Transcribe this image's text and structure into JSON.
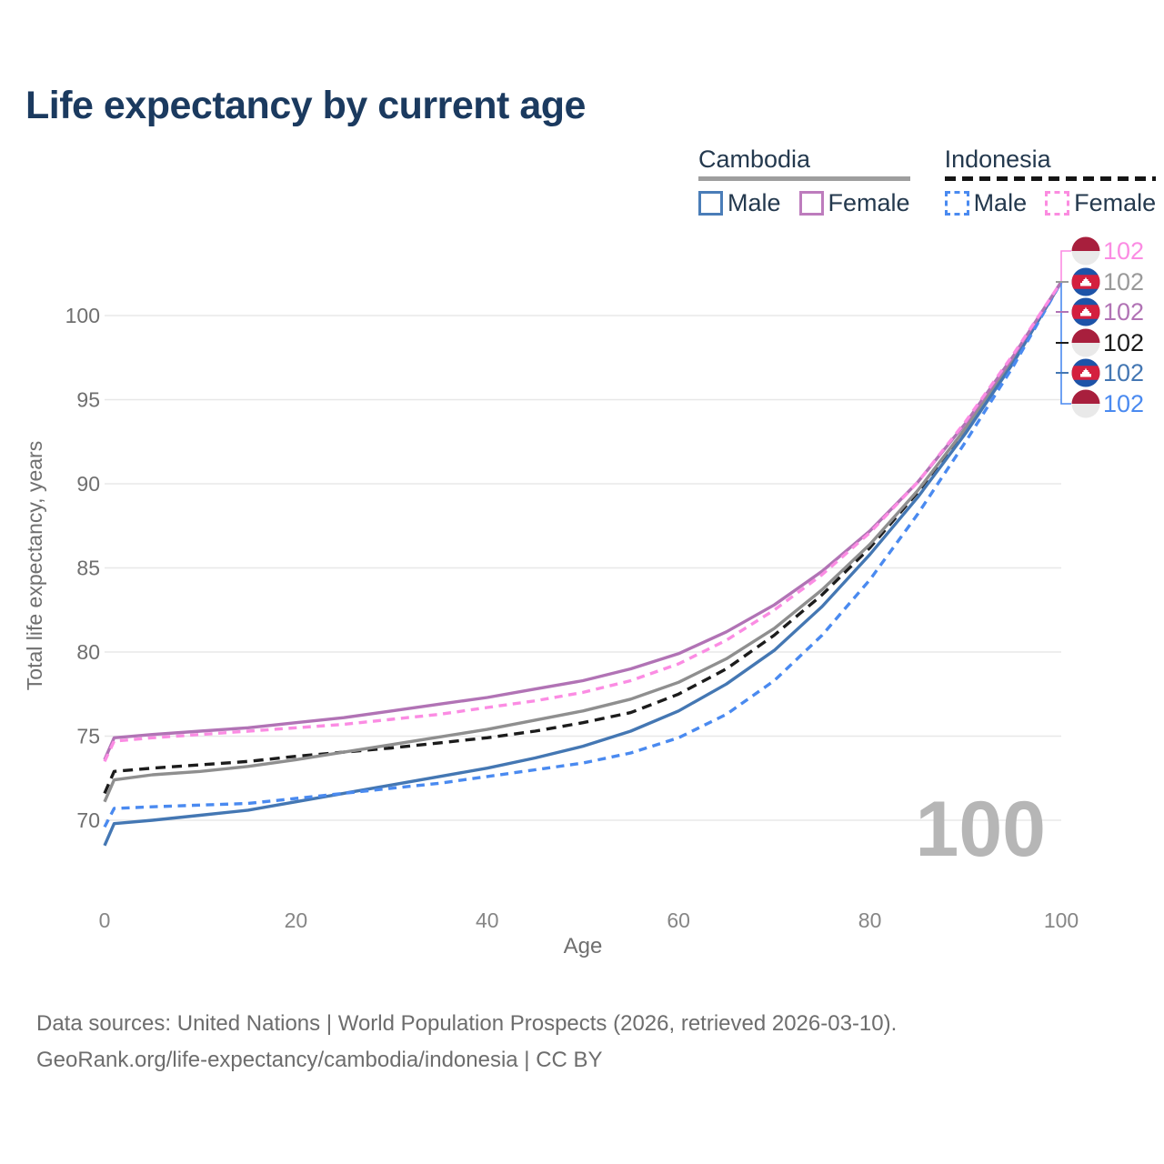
{
  "title": "Life expectancy by current age",
  "legend": {
    "groups": [
      {
        "label": "Cambodia",
        "line_style": "solid",
        "line_color": "#9e9e9e",
        "items": [
          {
            "label": "Male",
            "color": "#4a7db8",
            "style": "solid"
          },
          {
            "label": "Female",
            "color": "#bd7cbd",
            "style": "solid"
          }
        ]
      },
      {
        "label": "Indonesia",
        "line_style": "dashed",
        "line_color": "#151515",
        "items": [
          {
            "label": "Male",
            "color": "#4a8af0",
            "style": "dashed"
          },
          {
            "label": "Female",
            "color": "#fb8ce0",
            "style": "dashed"
          }
        ]
      }
    ]
  },
  "chart_data": {
    "type": "line",
    "title": "Life expectancy by current age",
    "xlabel": "Age",
    "ylabel": "Total life expectancy, years",
    "xlim": [
      0,
      100
    ],
    "ylim": [
      68,
      103
    ],
    "xticks": [
      0,
      20,
      40,
      60,
      80,
      100
    ],
    "yticks": [
      70,
      75,
      80,
      85,
      90,
      95,
      100
    ],
    "grid": "horizontal-only",
    "current_age_watermark": "100",
    "x": [
      0,
      1,
      5,
      10,
      15,
      20,
      25,
      30,
      35,
      40,
      45,
      50,
      55,
      60,
      65,
      70,
      75,
      80,
      85,
      90,
      95,
      100
    ],
    "series": [
      {
        "id": "indonesia_all",
        "name": "Indonesia - All",
        "color": "#1c1c1c",
        "dashed": true,
        "values": [
          71.6,
          72.9,
          73.1,
          73.3,
          73.5,
          73.8,
          74.05,
          74.3,
          74.6,
          74.9,
          75.3,
          75.8,
          76.4,
          77.5,
          79.0,
          81.0,
          83.4,
          86.2,
          89.5,
          93.3,
          97.4,
          102
        ]
      },
      {
        "id": "cambodia_all",
        "name": "Cambodia - All",
        "color": "#8f8f8f",
        "dashed": false,
        "values": [
          71.1,
          72.4,
          72.7,
          72.9,
          73.2,
          73.6,
          74.05,
          74.5,
          74.95,
          75.4,
          75.95,
          76.5,
          77.2,
          78.2,
          79.6,
          81.4,
          83.7,
          86.4,
          89.6,
          93.3,
          97.4,
          102
        ]
      },
      {
        "id": "cambodia_male",
        "name": "Cambodia - Male",
        "color": "#4477b3",
        "dashed": false,
        "values": [
          68.5,
          69.8,
          70.0,
          70.3,
          70.6,
          71.1,
          71.6,
          72.1,
          72.6,
          73.1,
          73.7,
          74.4,
          75.3,
          76.5,
          78.1,
          80.1,
          82.7,
          85.8,
          89.2,
          93.0,
          97.2,
          102
        ]
      },
      {
        "id": "indonesia_male",
        "name": "Indonesia - Male",
        "color": "#4a8af0",
        "dashed": true,
        "values": [
          69.6,
          70.7,
          70.8,
          70.9,
          71.0,
          71.3,
          71.6,
          71.9,
          72.2,
          72.6,
          73.0,
          73.4,
          74.0,
          74.9,
          76.3,
          78.3,
          81.0,
          84.3,
          88.2,
          92.5,
          97.0,
          102
        ]
      },
      {
        "id": "cambodia_female",
        "name": "Cambodia - Female",
        "color": "#b173b5",
        "dashed": false,
        "values": [
          73.6,
          74.9,
          75.1,
          75.3,
          75.5,
          75.8,
          76.1,
          76.5,
          76.9,
          77.3,
          77.8,
          78.3,
          79.0,
          79.9,
          81.2,
          82.8,
          84.8,
          87.2,
          90.1,
          93.6,
          97.6,
          102
        ]
      },
      {
        "id": "indonesia_female",
        "name": "Indonesia - Female",
        "color": "#fb8ce3",
        "dashed": true,
        "values": [
          73.5,
          74.7,
          74.9,
          75.1,
          75.3,
          75.5,
          75.7,
          76.0,
          76.3,
          76.7,
          77.1,
          77.6,
          78.3,
          79.3,
          80.7,
          82.5,
          84.6,
          87.1,
          90.1,
          93.7,
          97.7,
          102
        ]
      }
    ],
    "end_labels": [
      {
        "series": "indonesia_female",
        "flag": "indonesia",
        "value": "102",
        "color": "#fb8ce3"
      },
      {
        "series": "cambodia_all",
        "flag": "cambodia",
        "value": "102",
        "color": "#9a9a9a"
      },
      {
        "series": "cambodia_female",
        "flag": "cambodia",
        "value": "102",
        "color": "#b173b5"
      },
      {
        "series": "indonesia_all",
        "flag": "indonesia",
        "value": "102",
        "color": "#1c1c1c"
      },
      {
        "series": "cambodia_male",
        "flag": "cambodia",
        "value": "102",
        "color": "#4477b3"
      },
      {
        "series": "indonesia_male",
        "flag": "indonesia",
        "value": "102",
        "color": "#4a8af0"
      }
    ],
    "flag_colors": {
      "indonesia_red": "#a81f3d",
      "indonesia_white": "#e9e9e9",
      "cambodia_blue": "#1d53a8",
      "cambodia_red": "#d41f3e"
    }
  },
  "footer": {
    "line1": "Data sources: United Nations | World Population Prospects (2026, retrieved 2026-03-10).",
    "line2": "GeoRank.org/life-expectancy/cambodia/indonesia | CC BY"
  }
}
